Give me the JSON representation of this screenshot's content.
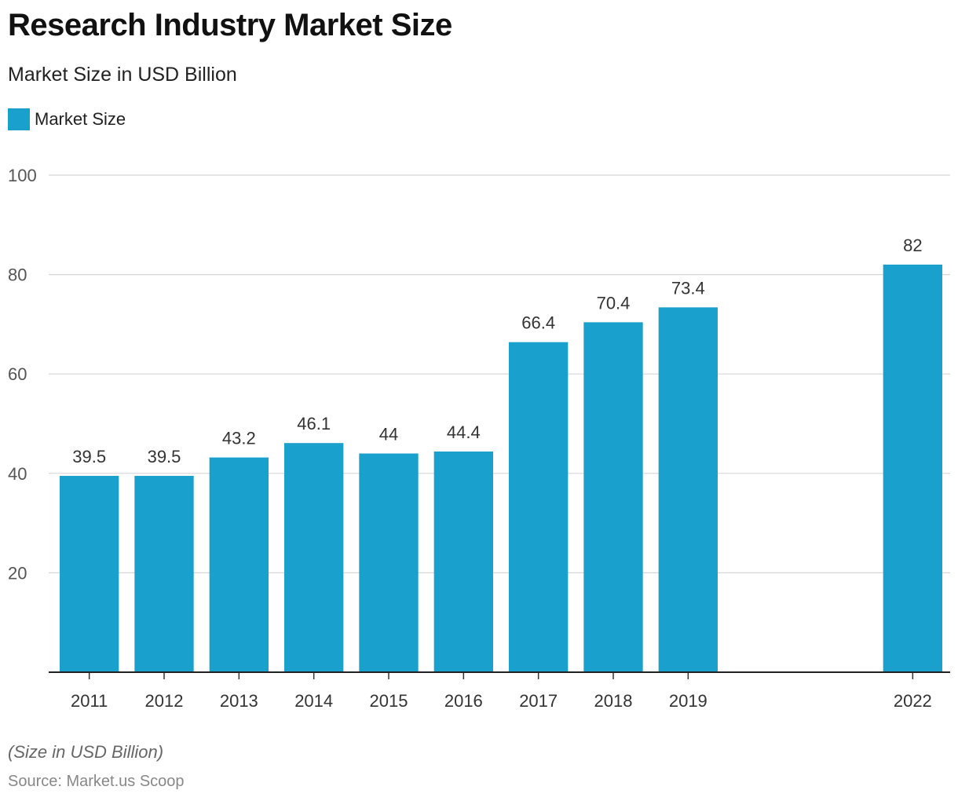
{
  "chart_data": {
    "type": "bar",
    "title": "Research Industry Market Size",
    "subtitle": "Market Size in USD Billion",
    "legend": {
      "position": "top-left",
      "entries": [
        "Market Size"
      ]
    },
    "categories": [
      "2011",
      "2012",
      "2013",
      "2014",
      "2015",
      "2016",
      "2017",
      "2018",
      "2019",
      "",
      "",
      "2022"
    ],
    "series": [
      {
        "name": "Market Size",
        "color": "#19a0cc",
        "values": [
          39.5,
          39.5,
          43.2,
          46.1,
          44,
          44.4,
          66.4,
          70.4,
          73.4,
          null,
          null,
          82
        ],
        "labels": [
          "39.5",
          "39.5",
          "43.2",
          "46.1",
          "44",
          "44.4",
          "66.4",
          "70.4",
          "73.4",
          "",
          "",
          "82"
        ]
      }
    ],
    "ylim": [
      0,
      100
    ],
    "yticks": [
      20,
      40,
      60,
      80,
      100
    ],
    "ytick_labels": [
      "20",
      "40",
      "60",
      "80",
      "100"
    ],
    "xlabel": "",
    "ylabel": "",
    "grid": true
  },
  "footnote": "(Size in USD Billion)",
  "source": "Source: Market.us Scoop"
}
